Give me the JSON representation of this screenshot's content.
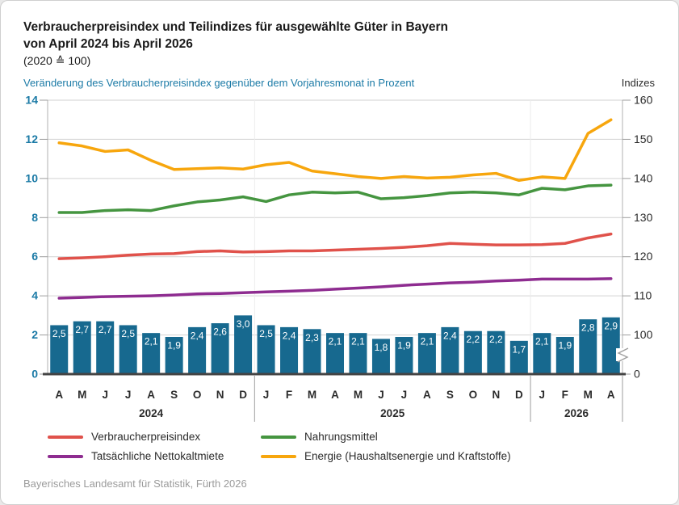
{
  "header": {
    "title_line1": "Verbraucherpreisindex und Teilindizes für ausgewählte Güter in Bayern",
    "title_line2": "von April 2024 bis April 2026",
    "title_line3": "(2020 ≙ 100)",
    "left_axis_title": "Veränderung des Verbraucherpreisindex gegenüber dem Vorjahresmonat in Prozent",
    "right_axis_title": "Indizes"
  },
  "footer": {
    "source": "Bayerisches Landesamt für Statistik, Fürth 2026"
  },
  "chart_data": {
    "type": "bar+line",
    "categories": [
      "A",
      "M",
      "J",
      "J",
      "A",
      "S",
      "O",
      "N",
      "D",
      "J",
      "F",
      "M",
      "A",
      "M",
      "J",
      "J",
      "A",
      "S",
      "O",
      "N",
      "D",
      "J",
      "F",
      "M",
      "A"
    ],
    "year_groups": [
      {
        "label": "2024",
        "count": 9
      },
      {
        "label": "2025",
        "count": 12
      },
      {
        "label": "2026",
        "count": 4
      }
    ],
    "left_axis": {
      "label": "Veränderung des Verbraucherpreisindex gegenüber dem Vorjahresmonat in Prozent",
      "unit": "Prozent",
      "ticks": [
        0,
        2,
        4,
        6,
        8,
        10,
        12,
        14
      ],
      "range": [
        0,
        14
      ],
      "tick_color": "#1b7aa6"
    },
    "right_axis": {
      "label": "Indizes",
      "ticks": [
        0,
        100,
        110,
        120,
        130,
        140,
        150,
        160
      ],
      "axis_break_between": [
        0,
        100
      ],
      "tick_color": "#2b2b2b"
    },
    "bars": {
      "name": "Veränderung des Verbraucherpreisindex gegenüber dem Vorjahresmonat in Prozent",
      "axis": "left",
      "color": "#17698f",
      "label_color": "#ffffff",
      "values": [
        2.5,
        2.7,
        2.7,
        2.5,
        2.1,
        1.9,
        2.4,
        2.6,
        3.0,
        2.5,
        2.4,
        2.3,
        2.1,
        2.1,
        1.8,
        1.9,
        2.1,
        2.4,
        2.2,
        2.2,
        1.7,
        2.1,
        1.9,
        2.8,
        2.9
      ],
      "labels": [
        "2,5",
        "2,7",
        "2,7",
        "2,5",
        "2,1",
        "1,9",
        "2,4",
        "2,6",
        "3,0",
        "2,5",
        "2,4",
        "2,3",
        "2,1",
        "2,1",
        "1,8",
        "1,9",
        "2,1",
        "2,4",
        "2,2",
        "2,2",
        "1,7",
        "2,1",
        "1,9",
        "2,8",
        "2,9"
      ]
    },
    "series": [
      {
        "name": "Verbraucherpreisindex",
        "axis": "right",
        "color": "#e0524b",
        "values": [
          119.5,
          119.7,
          120.0,
          120.4,
          120.7,
          120.8,
          121.3,
          121.5,
          121.2,
          121.3,
          121.5,
          121.5,
          121.7,
          121.9,
          122.1,
          122.4,
          122.8,
          123.4,
          123.2,
          123.0,
          123.0,
          123.1,
          123.4,
          124.8,
          125.8
        ]
      },
      {
        "name": "Nahrungsmittel",
        "axis": "right",
        "color": "#459540",
        "values": [
          131.3,
          131.3,
          131.8,
          132.0,
          131.8,
          133.0,
          134.0,
          134.5,
          135.3,
          134.1,
          135.8,
          136.5,
          136.3,
          136.5,
          134.8,
          135.1,
          135.6,
          136.3,
          136.5,
          136.3,
          135.8,
          137.5,
          137.1,
          138.1,
          138.3
        ]
      },
      {
        "name": "Tatsächliche Nettokaltmiete",
        "axis": "right",
        "color": "#8e2c90",
        "values": [
          109.4,
          109.6,
          109.8,
          109.9,
          110.0,
          110.2,
          110.5,
          110.6,
          110.8,
          111.0,
          111.2,
          111.4,
          111.7,
          112.0,
          112.3,
          112.7,
          113.0,
          113.3,
          113.5,
          113.8,
          114.0,
          114.3,
          114.3,
          114.3,
          114.4
        ]
      },
      {
        "name": "Energie (Haushaltsenergie und Kraftstoffe)",
        "axis": "right",
        "color": "#f7a60d",
        "values": [
          149.1,
          148.3,
          146.9,
          147.3,
          144.6,
          142.3,
          142.5,
          142.7,
          142.4,
          143.5,
          144.1,
          141.9,
          141.2,
          140.5,
          140.0,
          140.5,
          140.1,
          140.3,
          140.9,
          141.3,
          139.5,
          140.4,
          140.0,
          151.5,
          155.0
        ]
      }
    ],
    "grid": "horizontal",
    "legend_position": "bottom"
  }
}
